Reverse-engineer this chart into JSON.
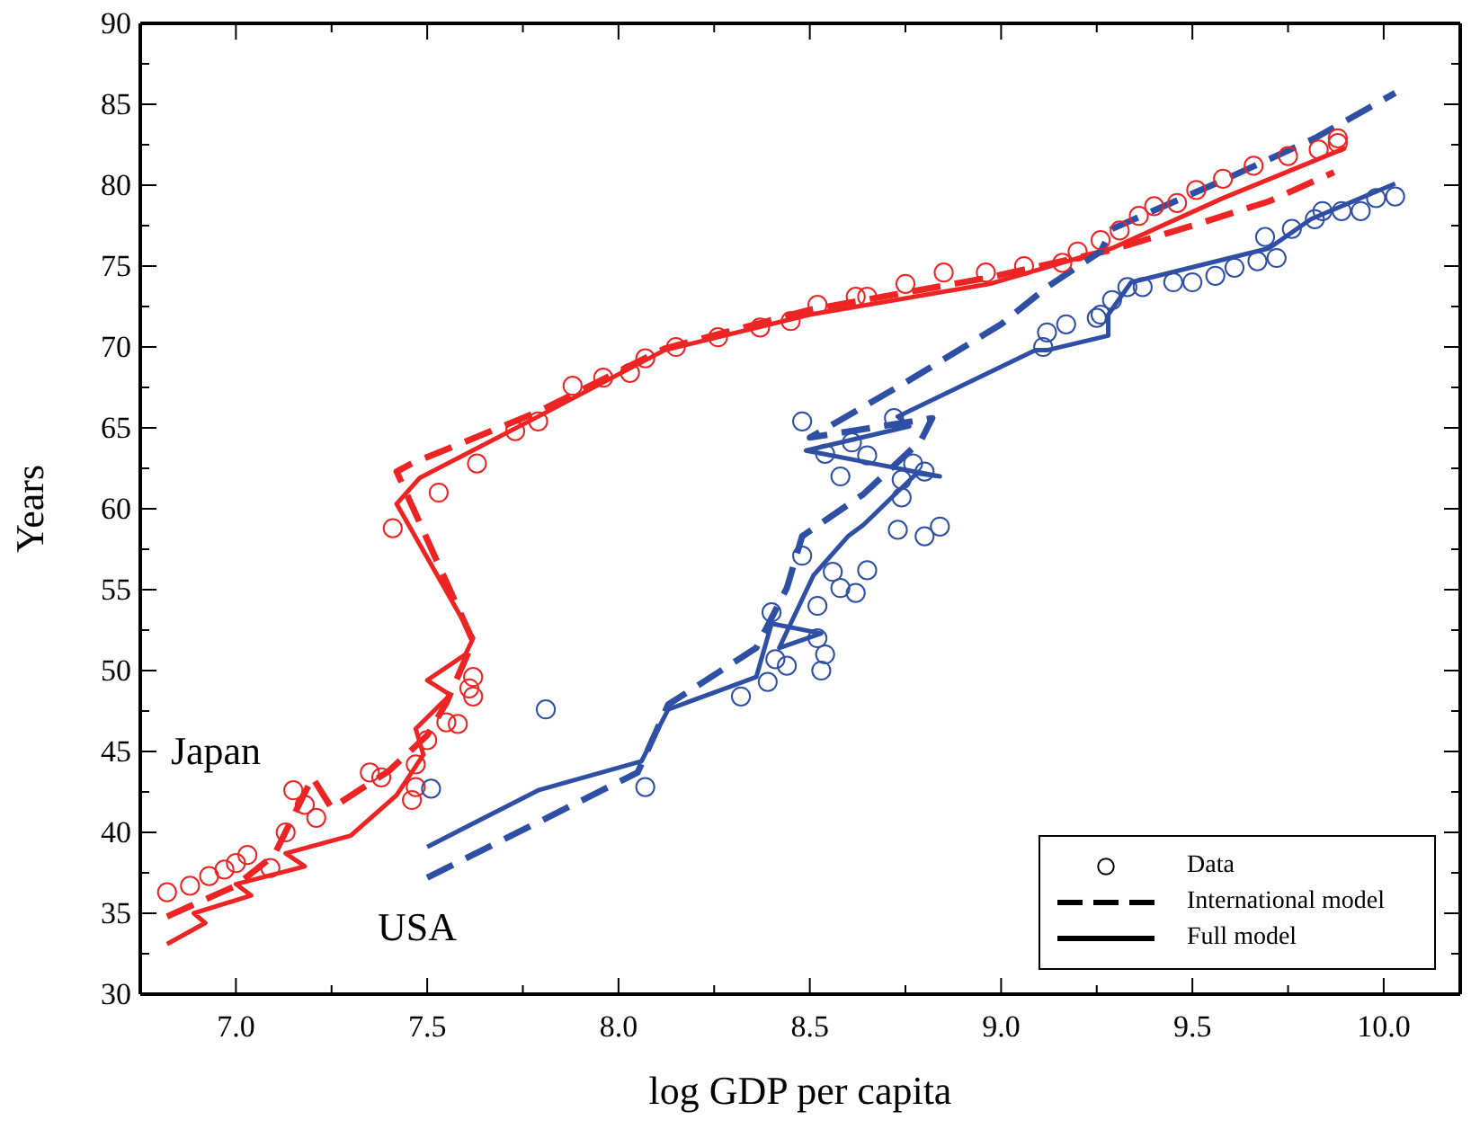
{
  "chart_data": {
    "type": "line",
    "xlabel": "log GDP per capita",
    "ylabel": "Years",
    "xlim": [
      6.75,
      10.2
    ],
    "ylim": [
      30,
      90
    ],
    "xticks": [
      {
        "value": 7,
        "label": "7.0"
      },
      {
        "value": 7.25,
        "label": null
      },
      {
        "value": 7.5,
        "label": "7.5"
      },
      {
        "value": 7.75,
        "label": null
      },
      {
        "value": 8,
        "label": "8.0"
      },
      {
        "value": 8.25,
        "label": null
      },
      {
        "value": 8.5,
        "label": "8.5"
      },
      {
        "value": 8.75,
        "label": null
      },
      {
        "value": 9,
        "label": "9.0"
      },
      {
        "value": 9.25,
        "label": null
      },
      {
        "value": 9.5,
        "label": "9.5"
      },
      {
        "value": 9.75,
        "label": null
      },
      {
        "value": 10,
        "label": "10.0"
      }
    ],
    "yticks": [
      30,
      {
        "value": 32.5,
        "label": null
      },
      35,
      {
        "value": 37.5,
        "label": null
      },
      40,
      {
        "value": 42.5,
        "label": null
      },
      45,
      {
        "value": 47.5,
        "label": null
      },
      50,
      {
        "value": 52.5,
        "label": null
      },
      55,
      {
        "value": 57.5,
        "label": null
      },
      60,
      {
        "value": 62.5,
        "label": null
      },
      65,
      {
        "value": 67.5,
        "label": null
      },
      70,
      {
        "value": 72.5,
        "label": null
      },
      75,
      {
        "value": 77.5,
        "label": null
      },
      80,
      {
        "value": 82.5,
        "label": null
      },
      85,
      {
        "value": 87.5,
        "label": null
      },
      90
    ],
    "grid": false,
    "annotations": [
      "Japan",
      "USA",
      "Data",
      "International model",
      "Full model"
    ],
    "series": [
      {
        "type": "scatter",
        "marker": "circle",
        "color": "#ee2424",
        "x": [
          6.82,
          6.88,
          6.93,
          6.97,
          7.0,
          7.03,
          7.09,
          7.13,
          7.15,
          7.18,
          7.21,
          7.35,
          7.38,
          7.46,
          7.47,
          7.47,
          7.5,
          7.55,
          7.58,
          7.61,
          7.62,
          7.62,
          7.41,
          7.53,
          7.63,
          7.73,
          7.79,
          7.88,
          7.96,
          8.03,
          8.07,
          8.15,
          8.26,
          8.37,
          8.45,
          8.52,
          8.62,
          8.65,
          8.75,
          8.85,
          8.96,
          9.06,
          9.16,
          9.2,
          9.26,
          9.31,
          9.36,
          9.4,
          9.46,
          9.51,
          9.58,
          9.66,
          9.75,
          9.83,
          9.88,
          9.88
        ],
        "values": [
          36.3,
          36.7,
          37.3,
          37.7,
          38.1,
          38.6,
          37.8,
          40.0,
          42.6,
          41.7,
          40.9,
          43.7,
          43.4,
          42.0,
          44.2,
          42.8,
          45.7,
          46.8,
          46.7,
          48.9,
          49.6,
          48.4,
          58.8,
          61.0,
          62.8,
          64.8,
          65.4,
          67.6,
          68.1,
          68.4,
          69.3,
          70.0,
          70.6,
          71.2,
          71.6,
          72.6,
          73.1,
          73.1,
          73.9,
          74.6,
          74.6,
          75.0,
          75.2,
          75.9,
          76.6,
          77.2,
          78.1,
          78.7,
          78.9,
          79.7,
          80.4,
          81.2,
          81.8,
          82.2,
          82.6,
          82.9
        ]
      },
      {
        "marker": "none",
        "line_style": "dashed",
        "color": "#ee2424",
        "x": [
          6.82,
          7.0,
          7.1,
          7.2,
          7.25,
          7.4,
          7.5,
          7.55,
          7.62,
          7.42,
          7.46,
          7.79,
          8.12,
          8.5,
          8.97,
          9.29,
          9.5,
          9.7,
          9.87
        ],
        "values": [
          34.8,
          36.7,
          38.6,
          43.4,
          41.5,
          43.8,
          46.0,
          48.0,
          51.8,
          62.3,
          62.8,
          66.0,
          69.9,
          72.3,
          74.3,
          76.0,
          77.5,
          79.0,
          80.8
        ]
      },
      {
        "marker": "none",
        "line_style": "solid",
        "color": "#ee2424",
        "x": [
          6.82,
          6.92,
          6.89,
          7.04,
          7.0,
          7.18,
          7.13,
          7.3,
          7.42,
          7.49,
          7.47,
          7.56,
          7.5,
          7.6,
          7.62,
          7.42,
          7.48,
          7.79,
          8.12,
          8.5,
          8.97,
          9.29,
          9.58,
          9.9
        ],
        "values": [
          33.1,
          34.4,
          35.0,
          36.1,
          36.8,
          37.9,
          38.7,
          39.8,
          42.3,
          44.8,
          46.4,
          48.5,
          49.4,
          51.0,
          52.0,
          60.3,
          61.9,
          65.7,
          69.8,
          72.0,
          73.9,
          76.1,
          79.2,
          82.3
        ]
      },
      {
        "type": "scatter",
        "marker": "circle",
        "color": "#2e4fa3",
        "x": [
          7.51,
          7.81,
          8.07,
          8.32,
          8.39,
          8.41,
          8.44,
          8.4,
          8.52,
          8.53,
          8.54,
          8.52,
          8.58,
          8.62,
          8.48,
          8.56,
          8.65,
          8.73,
          8.8,
          8.84,
          8.74,
          8.58,
          8.54,
          8.61,
          8.65,
          8.74,
          8.77,
          8.8,
          8.48,
          8.72,
          9.11,
          9.12,
          9.17,
          9.25,
          9.26,
          9.29,
          9.33,
          9.37,
          9.45,
          9.5,
          9.56,
          9.61,
          9.67,
          9.72,
          9.69,
          9.76,
          9.82,
          9.84,
          9.89,
          9.94,
          9.98,
          10.03
        ],
        "values": [
          42.7,
          47.6,
          42.8,
          48.4,
          49.3,
          50.7,
          50.3,
          53.6,
          52.0,
          50.0,
          51.0,
          54.0,
          55.1,
          54.8,
          57.1,
          56.1,
          56.2,
          58.7,
          58.3,
          58.9,
          60.7,
          62.0,
          63.4,
          64.1,
          63.3,
          61.8,
          62.8,
          62.3,
          65.4,
          65.6,
          70.0,
          70.9,
          71.4,
          71.8,
          72.0,
          72.9,
          73.7,
          73.7,
          74.0,
          74.0,
          74.4,
          74.9,
          75.3,
          75.5,
          76.8,
          77.3,
          77.9,
          78.4,
          78.4,
          78.4,
          79.2,
          79.3
        ]
      },
      {
        "marker": "none",
        "line_style": "dashed",
        "color": "#2e4fa3",
        "x": [
          7.5,
          8.05,
          8.13,
          8.36,
          8.44,
          8.48,
          8.64,
          8.79,
          8.82,
          8.5,
          8.75,
          9.0,
          9.12,
          9.26,
          9.29,
          9.58,
          9.82,
          10.03
        ],
        "values": [
          37.2,
          43.7,
          47.9,
          51.4,
          55.1,
          58.3,
          60.9,
          64.2,
          65.6,
          64.4,
          67.8,
          71.4,
          73.7,
          75.9,
          77.3,
          80.3,
          82.9,
          85.7
        ]
      },
      {
        "marker": "none",
        "line_style": "solid",
        "color": "#2e4fa3",
        "x": [
          7.5,
          7.79,
          8.06,
          8.13,
          8.36,
          8.4,
          8.53,
          8.42,
          8.51,
          8.6,
          8.64,
          8.78,
          8.84,
          8.49,
          8.76,
          8.73,
          9.09,
          9.12,
          9.28,
          9.28,
          9.34,
          9.7,
          9.81,
          10.03
        ],
        "values": [
          39.1,
          42.6,
          44.4,
          47.6,
          49.6,
          52.9,
          52.3,
          51.4,
          55.9,
          58.3,
          59.0,
          62.2,
          62.0,
          63.6,
          65.1,
          65.7,
          69.8,
          69.8,
          70.7,
          72.0,
          74.0,
          76.1,
          77.9,
          80.1
        ]
      }
    ]
  }
}
